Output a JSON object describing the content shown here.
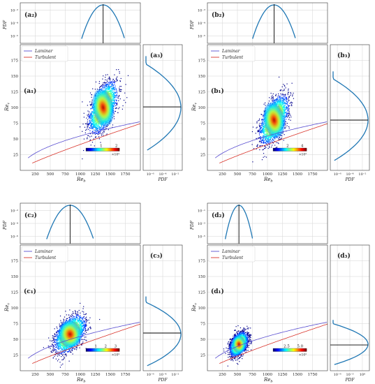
{
  "figure": {
    "legend_labels": {
      "laminar": "Laminar",
      "turbulent": "Turbulent"
    },
    "colors": {
      "laminar": "#5a4fd1",
      "turbulent": "#d9342b",
      "hist": "#1f77b4",
      "grid": "#d3d3d3",
      "mean": "#000000"
    }
  },
  "chart_data": [
    {
      "id": "a",
      "type": "heatmap",
      "labels": {
        "top": "(a₂)",
        "main": "(a₁)",
        "side": "(a₃)"
      },
      "xlabel": "Re_b",
      "ylabel": "Re_τ",
      "top_ylabel": "PDF",
      "side_xlabel": "PDF",
      "xlim": [
        0,
        2000
      ],
      "ylim": [
        0,
        200
      ],
      "xticks": [
        250,
        500,
        750,
        1000,
        1250,
        1500,
        1750
      ],
      "yticks": [
        25,
        50,
        75,
        100,
        125,
        150,
        175
      ],
      "top_yticks": [
        "10⁻⁵",
        "10⁻⁴",
        "10⁻³"
      ],
      "side_xticks": [
        "10⁻⁶",
        "10⁻⁴",
        "10⁻²"
      ],
      "colorbar": {
        "ticks": [
          "1",
          "2"
        ],
        "max": 2.2,
        "scale_label": "×10³"
      },
      "cloud": {
        "cx": 1380,
        "cy": 100,
        "sx": 110,
        "sy": 19,
        "rho": 0.55
      },
      "mean_x": 1380,
      "mean_y": 101,
      "legend": true
    },
    {
      "id": "b",
      "type": "heatmap",
      "labels": {
        "top": "(b₂)",
        "main": "(b₁)",
        "side": "(b₃)"
      },
      "xlabel": "Re_b",
      "ylabel": "Re_τ",
      "top_ylabel": "PDF",
      "side_xlabel": "PDF",
      "xlim": [
        0,
        2000
      ],
      "ylim": [
        0,
        200
      ],
      "xticks": [
        250,
        500,
        750,
        1000,
        1250,
        1500,
        1750
      ],
      "yticks": [
        25,
        50,
        75,
        100,
        125,
        150,
        175
      ],
      "top_yticks": [
        "10⁻⁵",
        "10⁻⁴",
        "10⁻³"
      ],
      "side_xticks": [
        "10⁻⁶",
        "10⁻⁴",
        "10⁻²"
      ],
      "colorbar": {
        "ticks": [
          "2",
          "4"
        ],
        "max": 4.6,
        "scale_label": "×10³"
      },
      "cloud": {
        "cx": 1110,
        "cy": 80,
        "sx": 110,
        "sy": 18,
        "rho": 0.55
      },
      "mean_x": 1110,
      "mean_y": 80,
      "legend": true
    },
    {
      "id": "c",
      "type": "heatmap",
      "labels": {
        "top": "(c₂)",
        "main": "(c₁)",
        "side": "(c₃)"
      },
      "xlabel": "Re_b",
      "ylabel": "Re_τ",
      "top_ylabel": "PDF",
      "side_xlabel": "PDF",
      "xlim": [
        0,
        2000
      ],
      "ylim": [
        0,
        200
      ],
      "xticks": [
        250,
        500,
        750,
        1000,
        1250,
        1500,
        1750
      ],
      "yticks": [
        25,
        50,
        75,
        100,
        125,
        150,
        175
      ],
      "top_yticks": [
        "10⁻⁶",
        "10⁻⁴",
        "10⁻²"
      ],
      "side_xticks": [
        "10⁻⁶",
        "10⁻⁴",
        "10⁻²"
      ],
      "colorbar": {
        "ticks": [
          "1",
          "2",
          "3"
        ],
        "max": 3.4,
        "scale_label": "×10³"
      },
      "cloud": {
        "cx": 830,
        "cy": 58,
        "sx": 120,
        "sy": 14,
        "rho": 0.5
      },
      "mean_x": 830,
      "mean_y": 60,
      "legend": true
    },
    {
      "id": "d",
      "type": "heatmap",
      "labels": {
        "top": "(d₂)",
        "main": "(d₁)",
        "side": "(d₃)"
      },
      "xlabel": "Re_b",
      "ylabel": "Re_τ",
      "top_ylabel": "PDF",
      "side_xlabel": "PDF",
      "xlim": [
        0,
        2000
      ],
      "ylim": [
        0,
        200
      ],
      "xticks": [
        250,
        500,
        750,
        1000,
        1250,
        1500,
        1750
      ],
      "yticks": [
        25,
        50,
        75,
        100,
        125,
        150,
        175
      ],
      "top_yticks": [
        "10⁻⁵",
        "10⁻³",
        "10⁻¹"
      ],
      "side_xticks": [
        "10⁻⁶",
        "10⁻³",
        "10⁰"
      ],
      "colorbar": {
        "ticks": [
          "2.5",
          "5.0"
        ],
        "max": 6.2,
        "scale_label": "×10³"
      },
      "cloud": {
        "cx": 525,
        "cy": 42,
        "sx": 70,
        "sy": 9,
        "rho": 0.4
      },
      "mean_x": 525,
      "mean_y": 41,
      "legend": true
    }
  ]
}
